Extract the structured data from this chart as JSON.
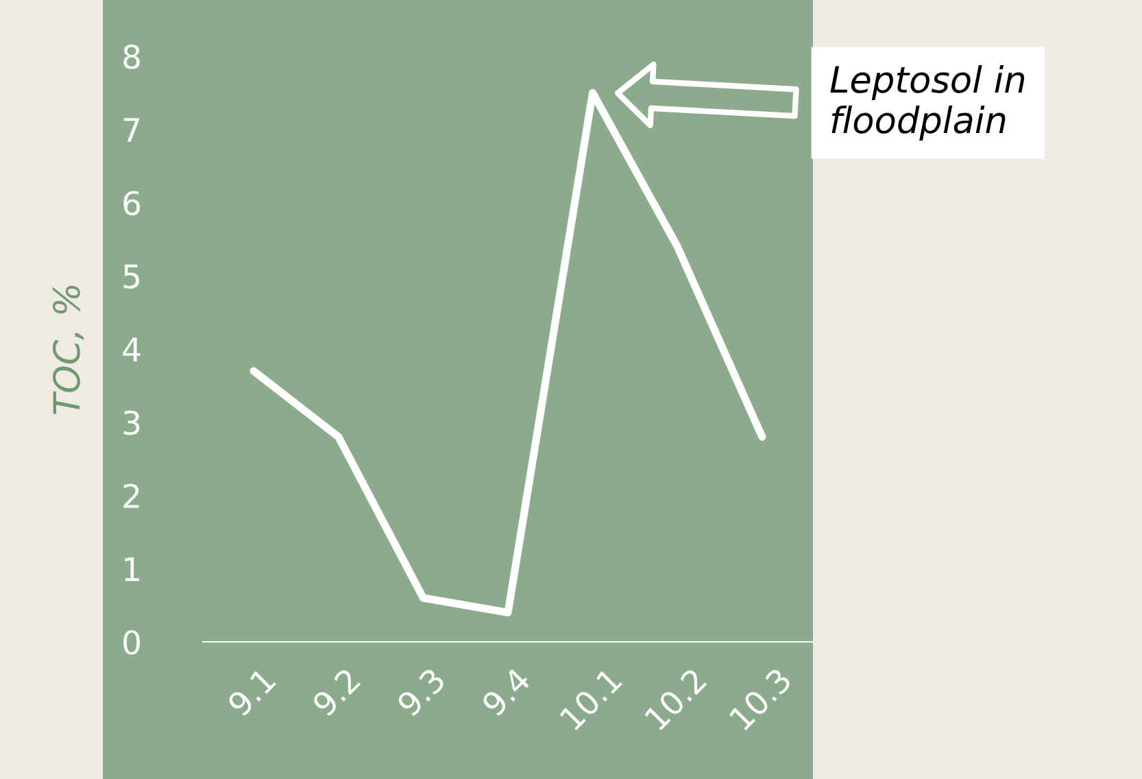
{
  "chart_data": {
    "type": "line",
    "ylabel": "TOC, %",
    "categories": [
      "9.1",
      "9.2",
      "9.3",
      "9.4",
      "10.1",
      "10.2",
      "10.3"
    ],
    "series": [
      {
        "color": "#ffffff",
        "values": [
          3.7,
          2.8,
          0.6,
          0.4,
          7.5,
          5.4,
          2.8
        ]
      }
    ],
    "ylim": [
      0,
      8
    ],
    "yticks": [
      0,
      1,
      2,
      3,
      4,
      5,
      6,
      7,
      8
    ],
    "annotations": [
      "Leptosol in\nfloodplain"
    ],
    "grid": false,
    "legend": false,
    "marker": "none",
    "line_style": "solid"
  }
}
